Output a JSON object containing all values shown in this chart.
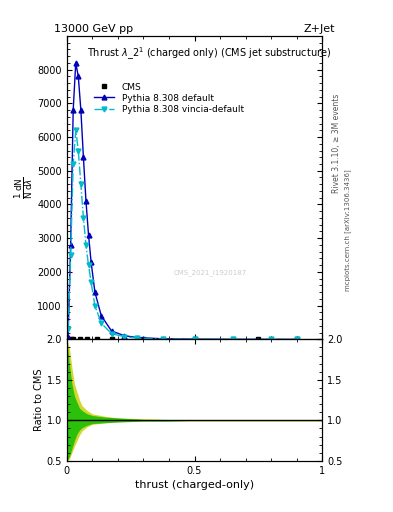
{
  "title_top": "13000 GeV pp",
  "title_right": "Z+Jet",
  "plot_title": "Thrust $\\lambda$_2$^1$ (charged only) (CMS jet substructure)",
  "xlabel": "thrust (charged-only)",
  "ylabel_ratio": "Ratio to CMS",
  "right_label_top": "Rivet 3.1.10, ≥ 3M events",
  "right_label_mid": "mcplots.cern.ch [arXiv:1306.3436]",
  "watermark": "CMS_2021_I1920187",
  "legend_entries": [
    "CMS",
    "Pythia 8.308 default",
    "Pythia 8.308 vincia-default"
  ],
  "pythia_default_x": [
    0.005,
    0.015,
    0.025,
    0.035,
    0.045,
    0.055,
    0.065,
    0.075,
    0.085,
    0.095,
    0.11,
    0.135,
    0.175,
    0.225,
    0.275,
    0.375,
    0.5,
    0.65,
    0.8,
    0.9
  ],
  "pythia_default_y": [
    80,
    2800,
    6800,
    8200,
    7800,
    6800,
    5400,
    4100,
    3100,
    2300,
    1400,
    700,
    250,
    110,
    55,
    18,
    7,
    2,
    0.5,
    0.2
  ],
  "pythia_vincia_x": [
    0.005,
    0.015,
    0.025,
    0.035,
    0.045,
    0.055,
    0.065,
    0.075,
    0.085,
    0.095,
    0.11,
    0.135,
    0.175,
    0.225,
    0.275,
    0.375,
    0.5,
    0.65,
    0.8,
    0.9
  ],
  "pythia_vincia_y": [
    300,
    2500,
    5200,
    6200,
    5600,
    4600,
    3600,
    2800,
    2200,
    1700,
    1000,
    480,
    170,
    80,
    40,
    13,
    5,
    1.5,
    0.5,
    0.2
  ],
  "cms_x": [
    0.005,
    0.015,
    0.025,
    0.05,
    0.08,
    0.12,
    0.175,
    0.3,
    0.5,
    0.75,
    0.9
  ],
  "cms_y": [
    5,
    5,
    5,
    5,
    5,
    5,
    5,
    5,
    5,
    5,
    5
  ],
  "color_pythia_default": "#0000bb",
  "color_pythia_vincia": "#00bbcc",
  "color_cms": "#000000",
  "color_green_band": "#00bb00",
  "color_yellow_band": "#cccc00",
  "xlim": [
    0.0,
    1.0
  ],
  "ylim_main": [
    0,
    9000
  ],
  "ylim_ratio": [
    0.5,
    2.0
  ],
  "yticks_main": [
    0,
    1000,
    2000,
    3000,
    4000,
    5000,
    6000,
    7000,
    8000
  ],
  "yticks_ratio": [
    0.5,
    1.0,
    1.5,
    2.0
  ],
  "xticks": [
    0.0,
    0.5,
    1.0
  ],
  "ratio_x": [
    0.0,
    0.01,
    0.02,
    0.03,
    0.04,
    0.05,
    0.06,
    0.08,
    0.1,
    0.15,
    0.2,
    0.3,
    0.4,
    0.5,
    0.6,
    0.7,
    0.8,
    0.9,
    1.0
  ],
  "yellow_y1": [
    0.5,
    0.52,
    0.6,
    0.68,
    0.75,
    0.82,
    0.87,
    0.92,
    0.95,
    0.97,
    0.98,
    0.99,
    0.99,
    0.99,
    0.99,
    0.99,
    0.99,
    0.99,
    0.99
  ],
  "yellow_y2": [
    2.0,
    1.9,
    1.65,
    1.45,
    1.35,
    1.25,
    1.18,
    1.12,
    1.08,
    1.05,
    1.03,
    1.02,
    1.01,
    1.01,
    1.01,
    1.01,
    1.01,
    1.01,
    1.01
  ],
  "green_y1": [
    0.5,
    0.55,
    0.65,
    0.75,
    0.83,
    0.88,
    0.91,
    0.94,
    0.96,
    0.97,
    0.98,
    0.99,
    0.99,
    1.0,
    1.0,
    1.0,
    1.0,
    1.0,
    1.0
  ],
  "green_y2": [
    2.0,
    1.7,
    1.45,
    1.3,
    1.22,
    1.15,
    1.12,
    1.08,
    1.06,
    1.04,
    1.03,
    1.01,
    1.01,
    1.0,
    1.0,
    1.0,
    1.0,
    1.0,
    1.0
  ]
}
